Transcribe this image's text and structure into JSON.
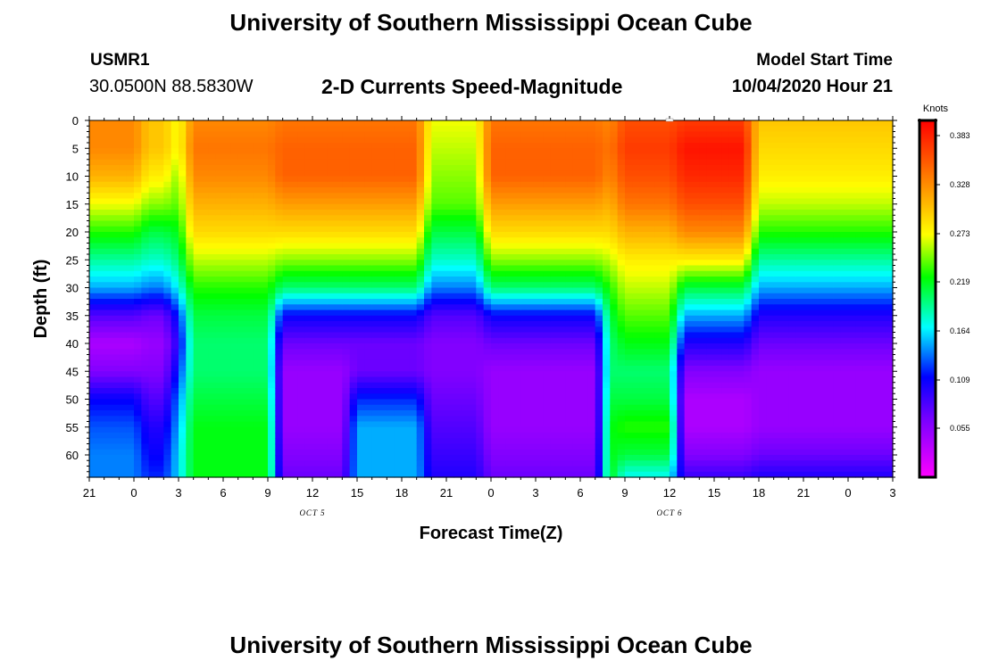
{
  "header": {
    "title": "University of Southern Mississippi Ocean Cube",
    "station_id": "USMR1",
    "coordinates": "30.0500N 88.5830W",
    "subtitle": "2-D Currents Speed-Magnitude",
    "model_start_label": "Model Start Time",
    "model_start_value": "10/04/2020 Hour 21"
  },
  "footer": {
    "title": "University of Southern Mississippi Ocean Cube"
  },
  "chart_data": {
    "type": "heatmap",
    "title": "2-D Currents Speed-Magnitude",
    "xlabel": "Forecast Time(Z)",
    "ylabel": "Depth (ft)",
    "x_tick_labels": [
      "21",
      "0",
      "3",
      "6",
      "9",
      "12",
      "15",
      "18",
      "21",
      "0",
      "3",
      "6",
      "9",
      "12",
      "15",
      "18",
      "21",
      "0",
      "3"
    ],
    "x_range_hours": [
      0,
      54
    ],
    "date_labels": [
      {
        "text": "OCT 5",
        "hour": 15
      },
      {
        "text": "OCT 6",
        "hour": 39
      }
    ],
    "y_tick_labels": [
      "0",
      "5",
      "10",
      "15",
      "20",
      "25",
      "30",
      "35",
      "40",
      "45",
      "50",
      "55",
      "60"
    ],
    "ylim": [
      0,
      64
    ],
    "y_inverted": true,
    "colorbar": {
      "units": "Knots",
      "ticks": [
        "0.383",
        "0.328",
        "0.273",
        "0.219",
        "0.164",
        "0.109",
        "0.055"
      ],
      "range": [
        0.0,
        0.4
      ],
      "colormap": "rainbow: magenta(low) - blue - cyan - green - yellow - orange - red(high)"
    },
    "speed_grid": {
      "hours": [
        0,
        1,
        2,
        3,
        4,
        5,
        6,
        7,
        8,
        9,
        10,
        11,
        12,
        13,
        14,
        15,
        16,
        17,
        18,
        19,
        20,
        21,
        22,
        23,
        24,
        25,
        26,
        27,
        28,
        29,
        30,
        31,
        32,
        33,
        34,
        35,
        36,
        37,
        38,
        39,
        40,
        41,
        42,
        43,
        44,
        45,
        46,
        47,
        48,
        49,
        50,
        51,
        52,
        53,
        54
      ],
      "depths_ft": [
        0,
        5,
        10,
        15,
        20,
        25,
        30,
        35,
        40,
        45,
        50,
        55,
        60,
        64
      ],
      "profile_columns": {
        "A": [
          0.33,
          0.33,
          0.31,
          0.27,
          0.23,
          0.19,
          0.15,
          0.08,
          0.04,
          0.06,
          0.11,
          0.13,
          0.14,
          0.14
        ],
        "B": [
          0.3,
          0.3,
          0.28,
          0.25,
          0.21,
          0.18,
          0.14,
          0.07,
          0.05,
          0.06,
          0.08,
          0.1,
          0.11,
          0.12
        ],
        "C": [
          0.27,
          0.27,
          0.25,
          0.24,
          0.22,
          0.2,
          0.17,
          0.12,
          0.1,
          0.12,
          0.14,
          0.15,
          0.16,
          0.16
        ],
        "D": [
          0.33,
          0.34,
          0.33,
          0.31,
          0.29,
          0.26,
          0.23,
          0.21,
          0.2,
          0.2,
          0.21,
          0.22,
          0.22,
          0.22
        ],
        "E": [
          0.34,
          0.35,
          0.35,
          0.32,
          0.29,
          0.25,
          0.2,
          0.11,
          0.07,
          0.05,
          0.05,
          0.05,
          0.06,
          0.07
        ],
        "F": [
          0.34,
          0.35,
          0.35,
          0.32,
          0.29,
          0.25,
          0.2,
          0.11,
          0.07,
          0.07,
          0.12,
          0.15,
          0.15,
          0.15
        ],
        "G": [
          0.27,
          0.26,
          0.25,
          0.24,
          0.21,
          0.18,
          0.14,
          0.08,
          0.06,
          0.06,
          0.07,
          0.08,
          0.09,
          0.1
        ],
        "H": [
          0.36,
          0.37,
          0.36,
          0.34,
          0.31,
          0.28,
          0.26,
          0.24,
          0.22,
          0.2,
          0.21,
          0.23,
          0.21,
          0.17
        ],
        "I": [
          0.37,
          0.39,
          0.38,
          0.36,
          0.33,
          0.28,
          0.21,
          0.15,
          0.1,
          0.06,
          0.04,
          0.04,
          0.06,
          0.09
        ],
        "J": [
          0.3,
          0.29,
          0.28,
          0.26,
          0.23,
          0.19,
          0.15,
          0.1,
          0.07,
          0.05,
          0.05,
          0.05,
          0.07,
          0.1
        ]
      },
      "column_sequence": [
        "A",
        "A",
        "A",
        "A",
        "B",
        "B",
        "C",
        "D",
        "D",
        "D",
        "D",
        "D",
        "D",
        "E",
        "E",
        "E",
        "E",
        "E",
        "F",
        "F",
        "F",
        "F",
        "F",
        "G",
        "G",
        "G",
        "G",
        "E",
        "E",
        "E",
        "E",
        "E",
        "E",
        "E",
        "E",
        "D",
        "H",
        "H",
        "H",
        "H",
        "I",
        "I",
        "I",
        "I",
        "I",
        "J",
        "J",
        "J",
        "J",
        "J",
        "J",
        "J",
        "J",
        "J",
        "J"
      ]
    },
    "marker": {
      "label": "model start marker",
      "hour": 39,
      "depth_ft": 0
    }
  }
}
